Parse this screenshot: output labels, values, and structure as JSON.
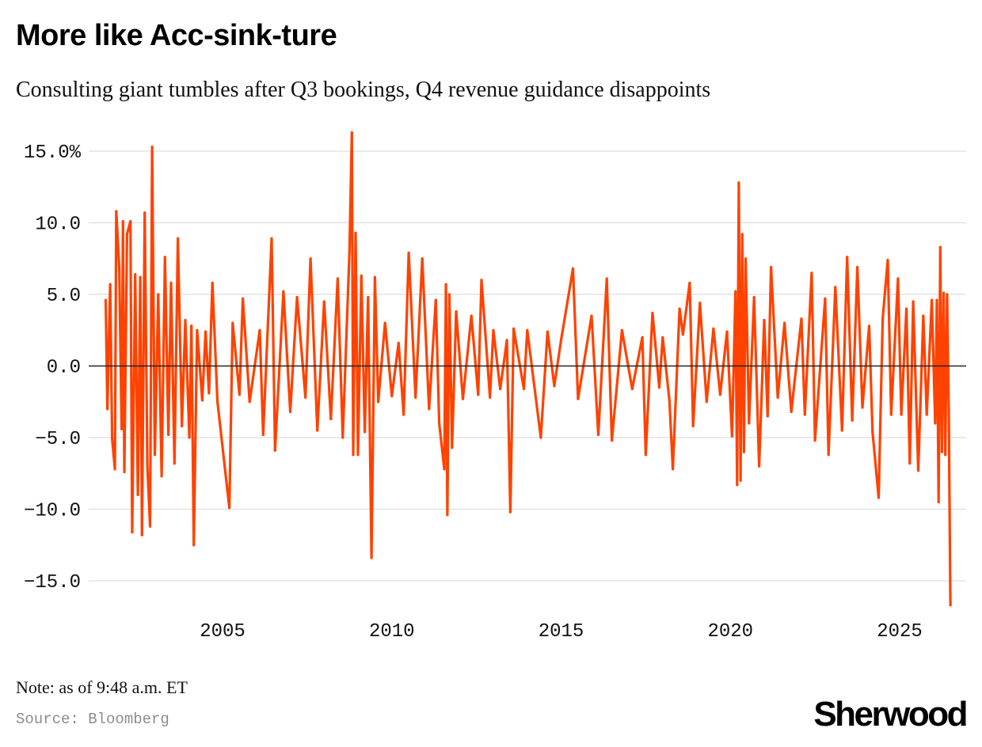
{
  "header": {
    "title": "More like Acc-sink-ture",
    "subtitle": "Consulting giant tumbles after Q3 bookings, Q4 revenue guidance disappoints"
  },
  "footer": {
    "note": "Note: as of 9:48 a.m. ET",
    "source": "Source: Bloomberg",
    "brand": "Sherwood"
  },
  "colors": {
    "series": "#ff4200",
    "grid": "#dddddd",
    "zero_line": "#222222",
    "background": "#ffffff"
  },
  "chart_data": {
    "type": "line",
    "title": "More like Acc-sink-ture",
    "xlabel": "",
    "ylabel": "",
    "x_unit": "year",
    "xlim": [
      2001.5,
      2026.7
    ],
    "ylim": [
      -17,
      16.5
    ],
    "grid": true,
    "legend": "none",
    "y_ticks": [
      {
        "value": 15,
        "label": "15.0%"
      },
      {
        "value": 10,
        "label": "10.0"
      },
      {
        "value": 5,
        "label": "5.0"
      },
      {
        "value": 0,
        "label": "0.0"
      },
      {
        "value": -5,
        "label": "−5.0"
      },
      {
        "value": -10,
        "label": "−10.0"
      },
      {
        "value": -15,
        "label": "−15.0"
      }
    ],
    "x_ticks": [
      {
        "value": 2005,
        "label": "2005"
      },
      {
        "value": 2010,
        "label": "2010"
      },
      {
        "value": 2015,
        "label": "2015"
      },
      {
        "value": 2020,
        "label": "2020"
      },
      {
        "value": 2025,
        "label": "2025"
      }
    ],
    "series": [
      {
        "values_description": "daily percent change",
        "points": [
          [
            2001.55,
            4.6
          ],
          [
            2001.6,
            -3.0
          ],
          [
            2001.68,
            5.7
          ],
          [
            2001.74,
            -5.1
          ],
          [
            2001.82,
            -7.2
          ],
          [
            2001.86,
            10.8
          ],
          [
            2001.95,
            6.8
          ],
          [
            2002.02,
            -4.4
          ],
          [
            2002.06,
            10.1
          ],
          [
            2002.1,
            -7.4
          ],
          [
            2002.18,
            9.2
          ],
          [
            2002.28,
            10.1
          ],
          [
            2002.33,
            -11.6
          ],
          [
            2002.42,
            6.4
          ],
          [
            2002.5,
            -9.0
          ],
          [
            2002.57,
            6.2
          ],
          [
            2002.62,
            -11.8
          ],
          [
            2002.7,
            10.7
          ],
          [
            2002.78,
            -7.0
          ],
          [
            2002.86,
            -11.2
          ],
          [
            2002.92,
            15.3
          ],
          [
            2003.0,
            -6.2
          ],
          [
            2003.1,
            5.0
          ],
          [
            2003.2,
            -7.7
          ],
          [
            2003.3,
            7.6
          ],
          [
            2003.4,
            -4.8
          ],
          [
            2003.48,
            5.8
          ],
          [
            2003.58,
            -6.8
          ],
          [
            2003.68,
            8.9
          ],
          [
            2003.8,
            -4.2
          ],
          [
            2003.9,
            3.2
          ],
          [
            2004.02,
            -5.0
          ],
          [
            2004.08,
            2.8
          ],
          [
            2004.15,
            -12.5
          ],
          [
            2004.25,
            2.5
          ],
          [
            2004.4,
            -2.4
          ],
          [
            2004.5,
            2.4
          ],
          [
            2004.6,
            -1.9
          ],
          [
            2004.7,
            5.8
          ],
          [
            2004.85,
            -2.5
          ],
          [
            2005.2,
            -9.9
          ],
          [
            2005.3,
            3.0
          ],
          [
            2005.5,
            -2.0
          ],
          [
            2005.6,
            4.7
          ],
          [
            2005.8,
            -2.5
          ],
          [
            2006.1,
            2.5
          ],
          [
            2006.2,
            -4.8
          ],
          [
            2006.45,
            8.9
          ],
          [
            2006.55,
            -5.9
          ],
          [
            2006.8,
            5.2
          ],
          [
            2007.0,
            -3.2
          ],
          [
            2007.2,
            4.8
          ],
          [
            2007.45,
            -2.2
          ],
          [
            2007.6,
            7.5
          ],
          [
            2007.8,
            -4.5
          ],
          [
            2008.0,
            4.5
          ],
          [
            2008.2,
            -3.7
          ],
          [
            2008.4,
            6.1
          ],
          [
            2008.55,
            -5.0
          ],
          [
            2008.75,
            8.0
          ],
          [
            2008.82,
            16.3
          ],
          [
            2008.86,
            -6.2
          ],
          [
            2008.93,
            9.3
          ],
          [
            2009.0,
            -6.2
          ],
          [
            2009.1,
            6.3
          ],
          [
            2009.2,
            -4.6
          ],
          [
            2009.3,
            4.8
          ],
          [
            2009.4,
            -13.4
          ],
          [
            2009.5,
            6.2
          ],
          [
            2009.6,
            -2.5
          ],
          [
            2009.8,
            3.0
          ],
          [
            2010.0,
            -2.1
          ],
          [
            2010.2,
            1.6
          ],
          [
            2010.35,
            -3.4
          ],
          [
            2010.5,
            7.9
          ],
          [
            2010.7,
            -2.2
          ],
          [
            2010.9,
            7.5
          ],
          [
            2011.1,
            -3.0
          ],
          [
            2011.3,
            4.6
          ],
          [
            2011.4,
            -4.0
          ],
          [
            2011.55,
            -7.2
          ],
          [
            2011.6,
            5.7
          ],
          [
            2011.64,
            -10.4
          ],
          [
            2011.7,
            5.0
          ],
          [
            2011.78,
            -5.7
          ],
          [
            2011.9,
            3.8
          ],
          [
            2012.1,
            -2.3
          ],
          [
            2012.35,
            3.5
          ],
          [
            2012.55,
            -2.0
          ],
          [
            2012.65,
            6.0
          ],
          [
            2012.9,
            -2.2
          ],
          [
            2013.0,
            2.5
          ],
          [
            2013.2,
            -1.6
          ],
          [
            2013.4,
            1.8
          ],
          [
            2013.5,
            -10.2
          ],
          [
            2013.6,
            2.6
          ],
          [
            2013.9,
            -1.6
          ],
          [
            2014.0,
            2.5
          ],
          [
            2014.4,
            -5.0
          ],
          [
            2014.6,
            2.4
          ],
          [
            2014.8,
            -1.4
          ],
          [
            2015.0,
            1.8
          ],
          [
            2015.35,
            6.8
          ],
          [
            2015.5,
            -2.3
          ],
          [
            2015.9,
            3.5
          ],
          [
            2016.1,
            -4.8
          ],
          [
            2016.35,
            6.1
          ],
          [
            2016.5,
            -5.2
          ],
          [
            2016.8,
            2.5
          ],
          [
            2017.1,
            -1.6
          ],
          [
            2017.4,
            2.0
          ],
          [
            2017.5,
            -6.2
          ],
          [
            2017.7,
            3.7
          ],
          [
            2017.9,
            -1.5
          ],
          [
            2018.0,
            2.0
          ],
          [
            2018.2,
            -2.4
          ],
          [
            2018.3,
            -7.2
          ],
          [
            2018.5,
            4.0
          ],
          [
            2018.6,
            2.2
          ],
          [
            2018.8,
            5.8
          ],
          [
            2018.9,
            -4.2
          ],
          [
            2019.1,
            4.4
          ],
          [
            2019.3,
            -2.5
          ],
          [
            2019.5,
            2.6
          ],
          [
            2019.7,
            -2.0
          ],
          [
            2019.9,
            2.4
          ],
          [
            2020.05,
            -4.9
          ],
          [
            2020.15,
            5.2
          ],
          [
            2020.2,
            -8.3
          ],
          [
            2020.25,
            12.8
          ],
          [
            2020.3,
            -8.0
          ],
          [
            2020.35,
            9.2
          ],
          [
            2020.4,
            -6.0
          ],
          [
            2020.45,
            7.5
          ],
          [
            2020.55,
            -4.0
          ],
          [
            2020.7,
            4.8
          ],
          [
            2020.85,
            -7.0
          ],
          [
            2021.0,
            3.2
          ],
          [
            2021.1,
            -3.5
          ],
          [
            2021.2,
            6.9
          ],
          [
            2021.4,
            -2.2
          ],
          [
            2021.6,
            3.0
          ],
          [
            2021.8,
            -3.2
          ],
          [
            2022.1,
            3.3
          ],
          [
            2022.2,
            -3.4
          ],
          [
            2022.4,
            6.5
          ],
          [
            2022.5,
            -5.2
          ],
          [
            2022.8,
            4.7
          ],
          [
            2022.9,
            -6.2
          ],
          [
            2023.1,
            5.5
          ],
          [
            2023.3,
            -4.5
          ],
          [
            2023.45,
            7.6
          ],
          [
            2023.6,
            -3.8
          ],
          [
            2023.75,
            6.9
          ],
          [
            2023.9,
            -2.9
          ],
          [
            2024.1,
            2.8
          ],
          [
            2024.2,
            -4.6
          ],
          [
            2024.38,
            -9.2
          ],
          [
            2024.5,
            3.3
          ],
          [
            2024.65,
            7.4
          ],
          [
            2024.75,
            -3.4
          ],
          [
            2024.95,
            6.1
          ],
          [
            2025.05,
            -3.4
          ],
          [
            2025.2,
            4.0
          ],
          [
            2025.3,
            -6.8
          ],
          [
            2025.4,
            4.5
          ],
          [
            2025.55,
            -7.3
          ],
          [
            2025.7,
            3.5
          ],
          [
            2025.8,
            -3.4
          ],
          [
            2025.95,
            4.6
          ],
          [
            2026.05,
            -4.0
          ],
          [
            2026.1,
            4.6
          ],
          [
            2026.15,
            -9.5
          ],
          [
            2026.2,
            8.3
          ],
          [
            2026.25,
            -6.0
          ],
          [
            2026.3,
            5.1
          ],
          [
            2026.35,
            -6.2
          ],
          [
            2026.4,
            5.0
          ],
          [
            2026.45,
            -3.0
          ],
          [
            2026.5,
            -16.7
          ]
        ]
      }
    ]
  }
}
